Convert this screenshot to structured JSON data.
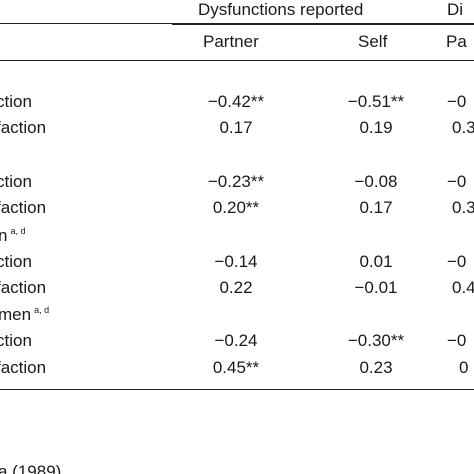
{
  "table": {
    "group_headers": [
      "Dysfunctions reported",
      "Di"
    ],
    "sub_headers": [
      "Partner",
      "Self",
      "Pa"
    ],
    "sections": [
      {
        "label": "",
        "superscript": ""
      },
      {
        "label": "",
        "superscript": ""
      },
      {
        "label": "n",
        "superscript": "a, d"
      },
      {
        "label": "men",
        "superscript": "a, d"
      }
    ],
    "rows": [
      {
        "label": "ction",
        "values": [
          "−0.42**",
          "−0.51**",
          "−0"
        ]
      },
      {
        "label": "faction",
        "values": [
          "0.17",
          "0.19",
          "0.3"
        ]
      },
      {
        "label": "ction",
        "values": [
          "−0.23**",
          "−0.08",
          "−0"
        ]
      },
      {
        "label": "faction",
        "values": [
          "0.20**",
          "0.17",
          "0.3"
        ]
      },
      {
        "label": "ction",
        "values": [
          "−0.14",
          "0.01",
          "−0"
        ]
      },
      {
        "label": "faction",
        "values": [
          "0.22",
          "−0.01",
          "0.4"
        ]
      },
      {
        "label": "ction",
        "values": [
          "−0.24",
          "−0.30**",
          "−0"
        ]
      },
      {
        "label": "faction",
        "values": [
          "0.45**",
          "0.23",
          "0"
        ]
      }
    ],
    "footnote": "a (1989)"
  }
}
